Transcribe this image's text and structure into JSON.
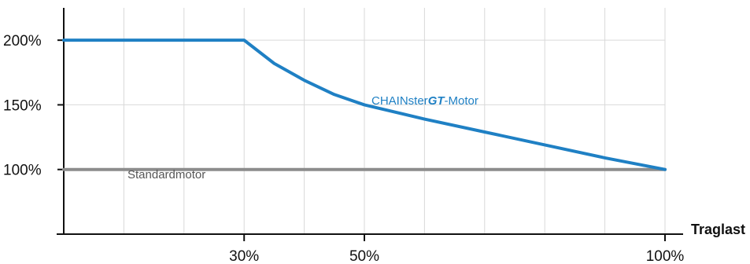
{
  "chart_data": {
    "type": "line",
    "xlabel": "Traglast",
    "ylabel": "",
    "xlim": [
      0,
      100
    ],
    "ylim": [
      50,
      225
    ],
    "x_ticks": [
      {
        "value": 30,
        "label": "30%"
      },
      {
        "value": 50,
        "label": "50%"
      },
      {
        "value": 100,
        "label": "100%"
      }
    ],
    "y_ticks": [
      {
        "value": 100,
        "label": "100%"
      },
      {
        "value": 150,
        "label": "150%"
      },
      {
        "value": 200,
        "label": "200%"
      }
    ],
    "grid": true,
    "series": [
      {
        "name": "CHAINster",
        "name_emphasis": "GT",
        "name_suffix": "-Motor",
        "color": "#1f80c4",
        "points": [
          {
            "x": 0,
            "y": 200
          },
          {
            "x": 30,
            "y": 200
          },
          {
            "x": 35,
            "y": 182
          },
          {
            "x": 40,
            "y": 169
          },
          {
            "x": 45,
            "y": 158
          },
          {
            "x": 50,
            "y": 150
          },
          {
            "x": 60,
            "y": 139
          },
          {
            "x": 70,
            "y": 129
          },
          {
            "x": 80,
            "y": 119
          },
          {
            "x": 90,
            "y": 109
          },
          {
            "x": 100,
            "y": 100
          }
        ]
      },
      {
        "name": "Standardmotor",
        "color": "#8c8c8c",
        "points": [
          {
            "x": 0,
            "y": 100
          },
          {
            "x": 100,
            "y": 100
          }
        ]
      }
    ]
  }
}
